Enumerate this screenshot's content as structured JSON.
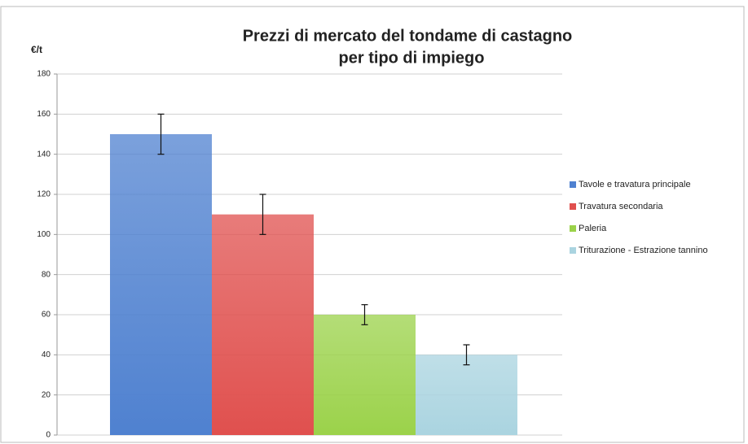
{
  "chart_data": {
    "type": "bar",
    "title": "Prezzi di mercato del tondame di castagno",
    "subtitle": "per tipo di impiego",
    "y_label": "€/t",
    "series": [
      {
        "name": "Tavole e travatura principale",
        "color": "#4f81d0",
        "values": [
          150
        ],
        "errors": [
          10
        ]
      },
      {
        "name": "Travatura secondaria",
        "color": "#e0504e",
        "values": [
          110
        ],
        "errors": [
          10
        ]
      },
      {
        "name": "Paleria",
        "color": "#9bd24a",
        "values": [
          60
        ],
        "errors": [
          5
        ]
      },
      {
        "name": "Triturazione - Estrazione tannino",
        "color": "#aad4e0",
        "values": [
          40
        ],
        "errors": [
          5
        ]
      }
    ],
    "ylim": [
      0,
      180
    ],
    "yticks": [
      0,
      20,
      40,
      60,
      80,
      100,
      120,
      140,
      160,
      180
    ],
    "grid": true,
    "legend": "right"
  }
}
